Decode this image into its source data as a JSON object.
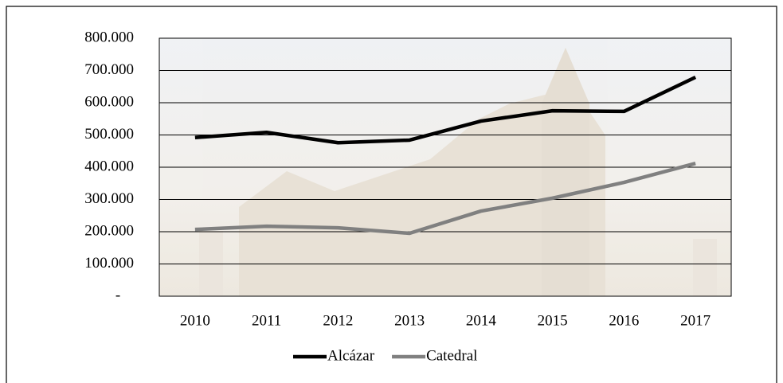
{
  "chart_data": {
    "type": "line",
    "categories": [
      "2010",
      "2011",
      "2012",
      "2013",
      "2014",
      "2015",
      "2016",
      "2017"
    ],
    "series": [
      {
        "name": "Alcázar",
        "color": "#000000",
        "values": [
          492000,
          508000,
          476000,
          484000,
          543000,
          575000,
          573000,
          679000
        ]
      },
      {
        "name": "Catedral",
        "color": "#808080",
        "values": [
          207000,
          217000,
          212000,
          195000,
          264000,
          304000,
          353000,
          412000
        ]
      }
    ],
    "ylim": [
      0,
      800000
    ],
    "yticks": [
      {
        "value": 0,
        "label": "-"
      },
      {
        "value": 100000,
        "label": "100.000"
      },
      {
        "value": 200000,
        "label": "200.000"
      },
      {
        "value": 300000,
        "label": "300.000"
      },
      {
        "value": 400000,
        "label": "400.000"
      },
      {
        "value": 500000,
        "label": "500.000"
      },
      {
        "value": 600000,
        "label": "600.000"
      },
      {
        "value": 700000,
        "label": "700.000"
      },
      {
        "value": 800000,
        "label": "800.000"
      }
    ],
    "grid": true,
    "legend": "bottom"
  }
}
